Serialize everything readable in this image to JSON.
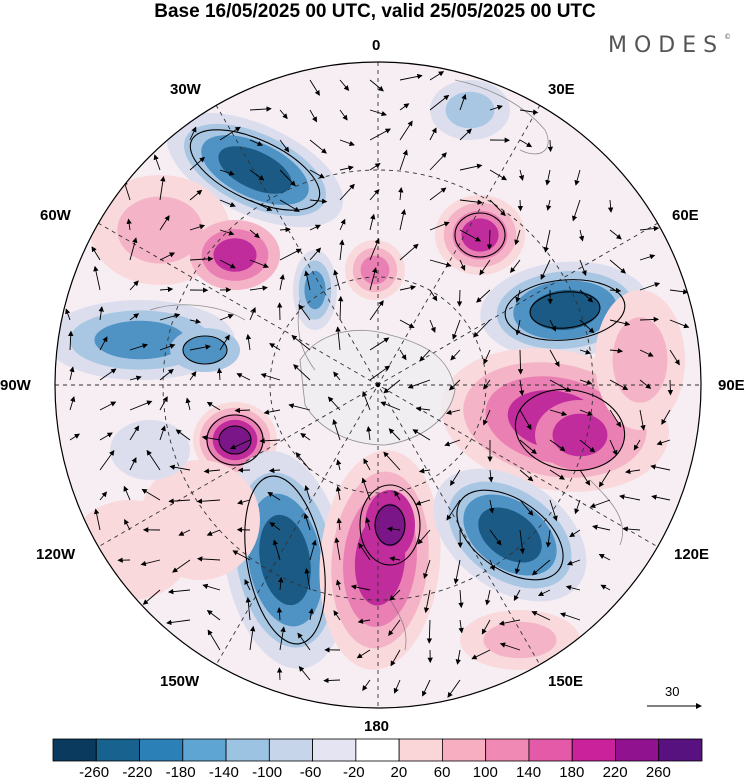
{
  "title": "Base 16/05/2025 00 UTC, valid 25/05/2025 00 UTC",
  "brand": "MODES",
  "brand_mark": "©",
  "longitude_labels": {
    "top": "0",
    "e30": "30E",
    "e60": "60E",
    "e90": "90E",
    "e120": "120E",
    "e150": "150E",
    "bottom": "180",
    "w150": "150W",
    "w120": "120W",
    "w90": "90W",
    "w60": "60W",
    "w30": "30W"
  },
  "reference_vector": {
    "value": "30"
  },
  "colorbar": {
    "colors": [
      "#0a3a5e",
      "#17628f",
      "#2b80b7",
      "#5fa5d4",
      "#9cc3e2",
      "#c6d5ea",
      "#e4e4f2",
      "#ffffff",
      "#fbd6d8",
      "#f6aec0",
      "#f08ab5",
      "#e459a8",
      "#c9229b",
      "#90128f",
      "#581280"
    ],
    "labels": [
      "-260",
      "-220",
      "-180",
      "-140",
      "-100",
      "-60",
      "-20",
      "20",
      "60",
      "100",
      "140",
      "180",
      "220",
      "260"
    ]
  },
  "map": {
    "projection": "south-polar-stereographic",
    "fill_colors": {
      "strong_neg": "#1a5a85",
      "mid_neg": "#4f92c4",
      "weak_neg": "#a9c6e3",
      "faint_neg": "#dcdeee",
      "faint_pos": "#f9d9dc",
      "weak_pos": "#f4b3c6",
      "mid_pos": "#ea7fb3",
      "strong_pos": "#c02c9c",
      "extreme_pos": "#7a1688"
    }
  }
}
